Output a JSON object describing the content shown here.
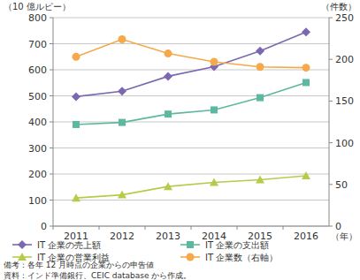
{
  "chart_data": {
    "type": "line",
    "categories": [
      "2011",
      "2012",
      "2013",
      "2014",
      "2015",
      "2016"
    ],
    "x_label": "（年）",
    "y_label": "（10 億ルピー）",
    "y2_label": "（件数）",
    "ylim": [
      0,
      800
    ],
    "yticks": [
      0,
      100,
      200,
      300,
      400,
      500,
      600,
      700,
      800
    ],
    "y2lim": [
      0,
      250
    ],
    "y2ticks": [
      0,
      50,
      100,
      150,
      200,
      250
    ],
    "grid": true,
    "legend": "bottom",
    "series": [
      {
        "name": "IT 企業の売上額",
        "color": "#7b68b0",
        "marker": "diamond",
        "values": [
          497,
          518,
          575,
          612,
          672,
          745
        ]
      },
      {
        "name": "IT 企業の支出額",
        "color": "#5cb8a0",
        "marker": "square",
        "values": [
          390,
          398,
          430,
          446,
          493,
          551
        ]
      },
      {
        "name": "IT 企業の営業利益",
        "color": "#b5cc4a",
        "marker": "triangle",
        "values": [
          108,
          120,
          152,
          168,
          178,
          193
        ]
      },
      {
        "name": "IT 企業数（右軸）",
        "color": "#f5a94a",
        "marker": "circle",
        "axis": "y2",
        "values": [
          203,
          224,
          207,
          197,
          191,
          190
        ]
      }
    ],
    "annotations": [
      "備考：各年 12 月時点の企業からの申告値",
      "資料：インド準備銀行、CEIC database から作成。"
    ]
  }
}
